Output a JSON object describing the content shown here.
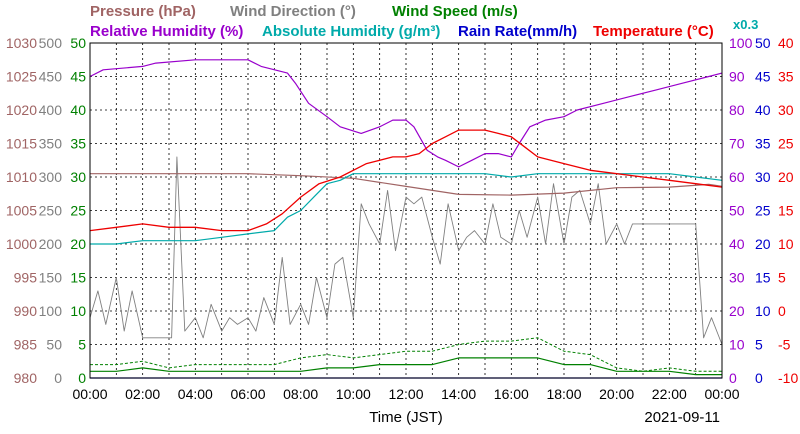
{
  "chart_data": {
    "type": "line",
    "date": "2021-09-11",
    "xlabel": "Time (JST)",
    "x_ticks": [
      "00:00",
      "02:00",
      "04:00",
      "06:00",
      "08:00",
      "10:00",
      "12:00",
      "14:00",
      "16:00",
      "18:00",
      "20:00",
      "22:00",
      "00:00"
    ],
    "grid": true,
    "axes": {
      "pressure": {
        "label": "Pressure (hPa)",
        "color": "#a06464",
        "range": [
          980,
          1030
        ],
        "ticks": [
          "1030",
          "1025",
          "1020",
          "1015",
          "1010",
          "1005",
          "1000",
          "995",
          "990",
          "985",
          "980"
        ]
      },
      "wind_dir": {
        "label": "Wind Direction (°)",
        "color": "#808080",
        "range": [
          0,
          500
        ],
        "ticks": [
          "500",
          "450",
          "400",
          "350",
          "300",
          "250",
          "200",
          "150",
          "100",
          "50",
          "0"
        ]
      },
      "wind_speed": {
        "label": "Wind Speed (m/s)",
        "color": "#008000",
        "range": [
          0,
          50
        ],
        "ticks": [
          "50",
          "45",
          "40",
          "35",
          "30",
          "25",
          "20",
          "15",
          "10",
          "5",
          "0"
        ]
      },
      "rel_humidity": {
        "label": "Relative Humidity (%)",
        "color": "#9900cc",
        "range": [
          0,
          100
        ],
        "ticks": [
          "100",
          "90",
          "80",
          "70",
          "60",
          "50",
          "40",
          "30",
          "20",
          "10",
          "0"
        ]
      },
      "abs_humidity": {
        "label": "Absolute Humidity (g/m³)",
        "color": "#00aaaa",
        "note": "x0.3"
      },
      "rain_rate": {
        "label": "Rain Rate(mm/h)",
        "color": "#0000cc",
        "range": [
          0,
          50
        ],
        "ticks": [
          "50",
          "45",
          "40",
          "35",
          "30",
          "25",
          "20",
          "15",
          "10",
          "5",
          "0"
        ]
      },
      "temperature": {
        "label": "Temperature (°C)",
        "color": "#ee0000",
        "range": [
          -10,
          40
        ],
        "ticks": [
          "40",
          "35",
          "30",
          "25",
          "20",
          "15",
          "10",
          "5",
          "0",
          "-5",
          "-10"
        ]
      }
    },
    "series": [
      {
        "name": "Relative Humidity (%)",
        "axis": "rel_humidity",
        "x": [
          0,
          0.5,
          2,
          2.5,
          4,
          6,
          6.5,
          7.5,
          7.8,
          8.3,
          9,
          9.5,
          10.3,
          11,
          11.5,
          12,
          12.3,
          12.8,
          13.2,
          13.5,
          14,
          14.5,
          15,
          15.5,
          16,
          16.3,
          16.7,
          17.3,
          18,
          18.5,
          19.5,
          20.5,
          21.5,
          22.5,
          23.5,
          24
        ],
        "values": [
          90,
          92,
          93,
          94,
          95,
          95,
          93,
          91,
          88,
          82,
          78,
          75,
          73,
          75,
          77,
          77,
          75,
          68,
          66,
          65,
          63,
          65,
          67,
          67,
          66,
          70,
          75,
          77,
          78,
          80,
          82,
          84,
          86,
          88,
          90,
          91
        ]
      },
      {
        "name": "Temperature (°C)",
        "axis": "temperature",
        "x": [
          0,
          1,
          2,
          3,
          4,
          5,
          6,
          6.7,
          7.3,
          8,
          8.7,
          9.5,
          10.5,
          11.5,
          12,
          12.5,
          13,
          13.5,
          14,
          14.5,
          15,
          15.5,
          16,
          16.5,
          17,
          18,
          19,
          20,
          21,
          22,
          23,
          24
        ],
        "values": [
          12,
          12.5,
          13,
          12.5,
          12.5,
          12,
          12,
          13,
          14.5,
          17,
          19,
          20,
          22,
          23,
          23,
          23.5,
          25,
          26,
          27,
          27,
          27,
          26.5,
          26,
          24.5,
          23,
          22,
          21,
          20.5,
          20,
          19.5,
          19,
          18.5
        ]
      },
      {
        "name": "Absolute Humidity x0.3",
        "axis": "temperature",
        "x": [
          0,
          1,
          2,
          3,
          4,
          5,
          6,
          7,
          7.5,
          8,
          8.5,
          9,
          9.5,
          10,
          11,
          12,
          13,
          14,
          15,
          16,
          17,
          18,
          19,
          20,
          21,
          22,
          23,
          24
        ],
        "values": [
          10,
          10,
          10.5,
          10.5,
          10.5,
          11,
          11.5,
          12,
          14,
          15,
          17,
          19,
          19.5,
          20.5,
          20.5,
          20.5,
          20.5,
          20.5,
          20.5,
          20,
          20.5,
          20.5,
          20.5,
          20.5,
          20.5,
          20.5,
          20,
          19.5
        ]
      },
      {
        "name": "Pressure (hPa)",
        "axis": "pressure",
        "x": [
          0,
          2,
          4,
          6,
          8,
          10,
          12,
          14,
          16,
          18,
          20,
          22,
          23.5,
          24
        ],
        "values": [
          1010.5,
          1010.5,
          1010.5,
          1010.5,
          1010.2,
          1009.8,
          1008.6,
          1007.4,
          1007.3,
          1007.6,
          1008.4,
          1008.5,
          1008.9,
          1008.6
        ]
      },
      {
        "name": "Wind Direction (°)",
        "axis": "wind_dir",
        "x": [
          0,
          0.3,
          0.6,
          1,
          1.3,
          1.6,
          2,
          2.4,
          2.8,
          3,
          3.1,
          3.3,
          3.6,
          4,
          4.3,
          4.6,
          5,
          5.3,
          5.6,
          6,
          6.3,
          6.6,
          7,
          7.3,
          7.6,
          8,
          8.3,
          8.6,
          9,
          9.3,
          9.6,
          10,
          10.3,
          10.6,
          11,
          11.3,
          11.6,
          12,
          12.3,
          12.6,
          13,
          13.3,
          13.6,
          14,
          14.3,
          14.6,
          15,
          15.3,
          15.6,
          16,
          16.3,
          16.6,
          17,
          17.3,
          17.6,
          18,
          18.3,
          18.6,
          19,
          19.3,
          19.6,
          20,
          20.3,
          20.6,
          21,
          21.5,
          22,
          22.5,
          23,
          23.3,
          23.6,
          24
        ],
        "values": [
          90,
          130,
          80,
          150,
          70,
          130,
          60,
          60,
          60,
          60,
          60,
          330,
          70,
          90,
          60,
          110,
          70,
          90,
          80,
          90,
          70,
          120,
          80,
          180,
          80,
          110,
          80,
          150,
          90,
          170,
          180,
          90,
          260,
          230,
          200,
          280,
          190,
          270,
          260,
          270,
          210,
          170,
          260,
          190,
          210,
          220,
          200,
          260,
          210,
          200,
          250,
          210,
          270,
          200,
          290,
          200,
          270,
          280,
          230,
          290,
          200,
          230,
          200,
          230,
          230,
          230,
          230,
          230,
          230,
          60,
          90,
          50
        ]
      },
      {
        "name": "Wind Speed (m/s)",
        "axis": "wind_speed",
        "x": [
          0,
          1,
          2,
          3,
          4,
          5,
          6,
          7,
          8,
          9,
          10,
          11,
          12,
          13,
          14,
          15,
          16,
          17,
          18,
          19,
          20,
          21,
          22,
          23,
          24
        ],
        "values": [
          1,
          1,
          1.5,
          1,
          1,
          1,
          1,
          1,
          1,
          1.5,
          1.5,
          2,
          2,
          2,
          3,
          3,
          3,
          3,
          2,
          2,
          1,
          1,
          1,
          0.5,
          0.5
        ]
      },
      {
        "name": "Wind Speed gust (m/s)",
        "axis": "wind_speed",
        "x": [
          0,
          1,
          2,
          3,
          4,
          5,
          6,
          7,
          8,
          9,
          10,
          11,
          12,
          13,
          14,
          15,
          16,
          17,
          18,
          19,
          20,
          21,
          22,
          23,
          24
        ],
        "values": [
          2,
          2,
          2.5,
          1.5,
          2,
          2,
          2,
          2,
          3,
          3.5,
          3,
          3.5,
          4,
          4,
          5,
          5.5,
          5.5,
          6,
          4,
          3.5,
          1.5,
          1,
          1.5,
          1,
          1
        ]
      },
      {
        "name": "Rain Rate(mm/h)",
        "axis": "rain_rate",
        "x": [
          0,
          24
        ],
        "values": [
          0,
          0
        ]
      }
    ]
  }
}
